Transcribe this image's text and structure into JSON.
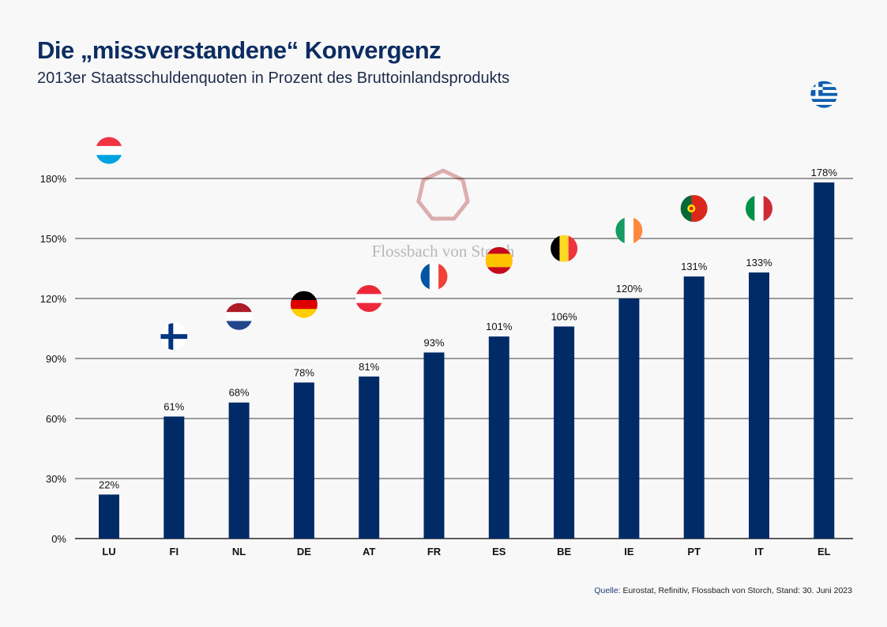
{
  "title": "Die „missverstandene“ Konvergenz",
  "subtitle": "2013er Staatsschuldenquoten  in Prozent des Bruttoinlandsprodukts",
  "source_prefix": "Quelle:",
  "source_text": " Eurostat, Refinitiv, Flossbach von Storch, Stand: 30. Juni 2023",
  "watermark": "Flossbach von Storch",
  "colors": {
    "bar": "#002b66",
    "grid": "#000000",
    "watermark": "#d9a5a5"
  },
  "chart_data": {
    "type": "bar",
    "title": "Die „missverstandene“ Konvergenz",
    "subtitle": "2013er Staatsschuldenquoten  in Prozent des Bruttoinlandsprodukts",
    "categories": [
      "LU",
      "FI",
      "NL",
      "DE",
      "AT",
      "FR",
      "ES",
      "BE",
      "IE",
      "PT",
      "IT",
      "EL"
    ],
    "values": [
      22,
      61,
      68,
      78,
      81,
      93,
      101,
      106,
      120,
      131,
      133,
      178
    ],
    "data_labels": [
      "22%",
      "61%",
      "68%",
      "78%",
      "81%",
      "93%",
      "101%",
      "106%",
      "120%",
      "131%",
      "133%",
      "178%"
    ],
    "flags": [
      "luxembourg-flag",
      "finland-flag",
      "netherlands-flag",
      "germany-flag",
      "austria-flag",
      "france-flag",
      "spain-flag",
      "belgium-flag",
      "ireland-flag",
      "portugal-flag",
      "italy-flag",
      "greece-flag"
    ],
    "ylim": [
      0,
      180
    ],
    "yticks": [
      "0%",
      "30%",
      "60%",
      "90%",
      "120%",
      "150%",
      "180%"
    ],
    "grid": true,
    "legend": "none"
  }
}
